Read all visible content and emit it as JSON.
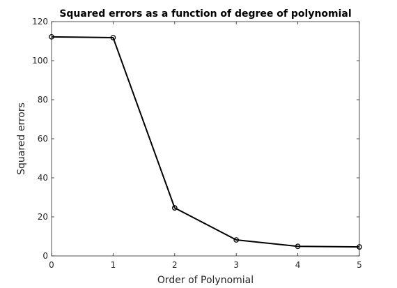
{
  "chart_data": {
    "type": "line",
    "title": "Squared errors as a function of degree of polynomial",
    "xlabel": "Order of Polynomial",
    "ylabel": "Squared errors",
    "xlim": [
      0,
      5
    ],
    "ylim": [
      0,
      120
    ],
    "xticks": [
      0,
      1,
      2,
      3,
      4,
      5
    ],
    "yticks": [
      0,
      20,
      40,
      60,
      80,
      100,
      120
    ],
    "grid": false,
    "legend": "none",
    "series": [
      {
        "x": [
          0,
          1,
          2,
          3,
          4,
          5
        ],
        "values": [
          112.2,
          111.8,
          24.6,
          8.2,
          4.9,
          4.6
        ],
        "color": "#000000",
        "marker": "circle"
      }
    ]
  }
}
